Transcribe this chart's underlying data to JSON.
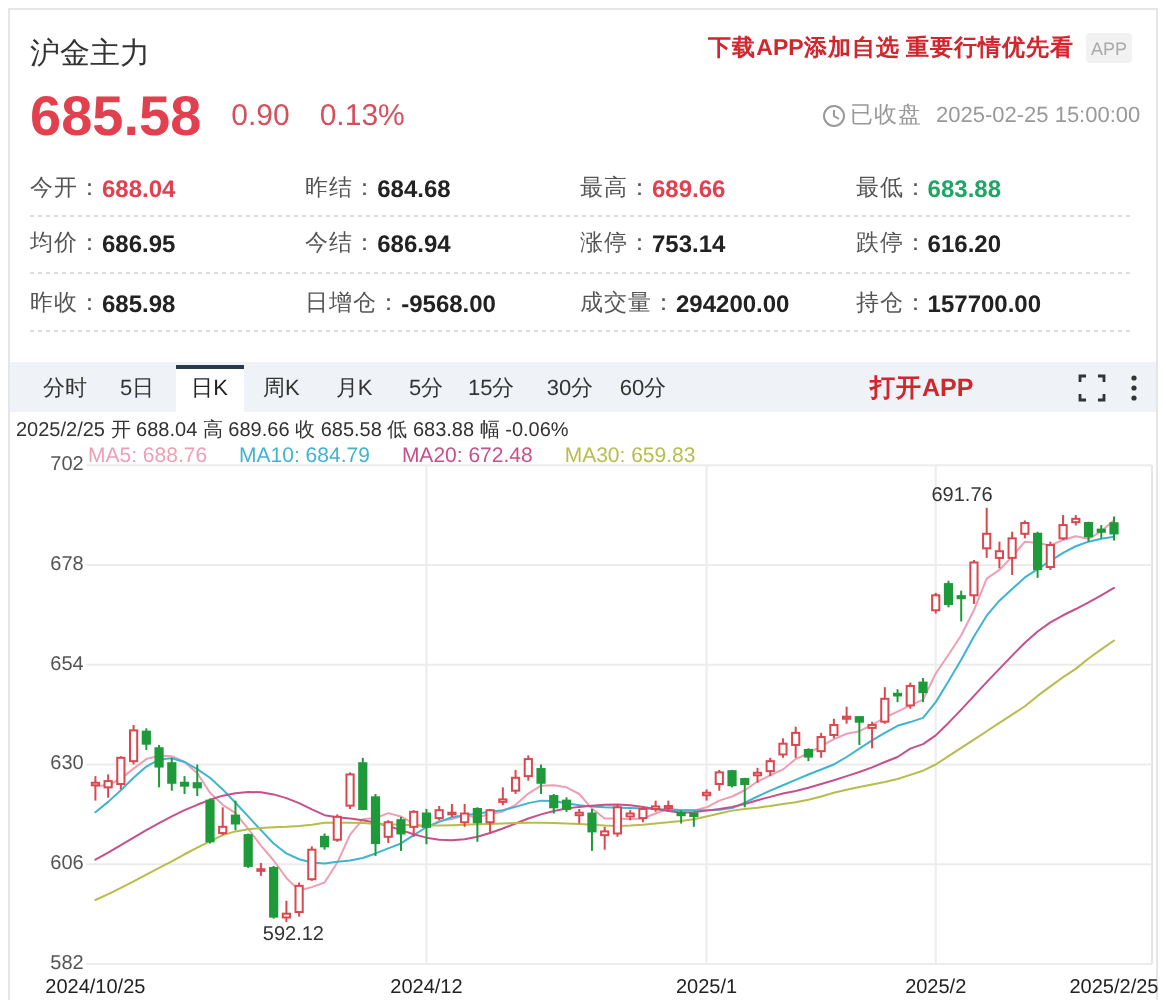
{
  "chart_data": {
    "type": "candlestick",
    "title": "沪金主力",
    "subtitle": "2025/2/25 开 688.04 高 689.66 收 685.58 低 683.88 幅 -0.06%",
    "categories": [
      "2024/10/25",
      null,
      null,
      null,
      null,
      null,
      null,
      null,
      null,
      null,
      null,
      null,
      null,
      null,
      null,
      null,
      null,
      null,
      null,
      null,
      null,
      null,
      null,
      null,
      null,
      null,
      "2024/12",
      null,
      null,
      null,
      null,
      null,
      null,
      null,
      null,
      null,
      null,
      null,
      null,
      null,
      null,
      null,
      null,
      null,
      null,
      null,
      null,
      null,
      "2025/1",
      null,
      null,
      null,
      null,
      null,
      null,
      null,
      null,
      null,
      null,
      null,
      null,
      null,
      null,
      null,
      null,
      null,
      "2025/2",
      null,
      null,
      null,
      null,
      null,
      null,
      null,
      null,
      null,
      null,
      null,
      null,
      null,
      "2025/2/25"
    ],
    "ohlc": [
      [
        625.0,
        627.2,
        621.3,
        625.6
      ],
      [
        624.5,
        627.6,
        622.0,
        626.0
      ],
      [
        625.3,
        632.0,
        624.0,
        631.6
      ],
      [
        630.8,
        639.5,
        630.0,
        638.2
      ],
      [
        637.9,
        638.7,
        633.5,
        635.0
      ],
      [
        633.9,
        634.7,
        624.5,
        629.5
      ],
      [
        630.3,
        631.6,
        623.7,
        625.6
      ],
      [
        625.6,
        627.2,
        622.9,
        624.9
      ],
      [
        625.5,
        630.0,
        622.4,
        624.5
      ],
      [
        621.3,
        621.8,
        611.0,
        611.5
      ],
      [
        613.5,
        619.7,
        613.0,
        615.0
      ],
      [
        617.7,
        621.3,
        614.2,
        615.8
      ],
      [
        613.0,
        613.4,
        605.1,
        605.6
      ],
      [
        604.5,
        606.3,
        603.2,
        604.8
      ],
      [
        605.1,
        605.6,
        592.9,
        593.4
      ],
      [
        593.2,
        597.2,
        592.12,
        594.1
      ],
      [
        594.5,
        601.6,
        593.4,
        600.8
      ],
      [
        602.4,
        610.3,
        602.0,
        609.5
      ],
      [
        612.6,
        613.4,
        609.5,
        610.3
      ],
      [
        611.9,
        618.0,
        611.4,
        617.4
      ],
      [
        620.1,
        628.1,
        619.3,
        627.6
      ],
      [
        630.3,
        631.6,
        619.0,
        619.3
      ],
      [
        622.1,
        622.9,
        608.0,
        611.1
      ],
      [
        612.6,
        616.6,
        611.1,
        616.1
      ],
      [
        616.6,
        617.4,
        609.2,
        613.4
      ],
      [
        615.0,
        619.0,
        612.6,
        618.6
      ],
      [
        618.2,
        619.3,
        610.8,
        615.0
      ],
      [
        617.1,
        620.0,
        616.6,
        619.0
      ],
      [
        618.0,
        620.5,
        617.4,
        618.4
      ],
      [
        616.1,
        620.5,
        615.0,
        618.2
      ],
      [
        619.3,
        619.7,
        611.4,
        616.1
      ],
      [
        616.1,
        619.3,
        613.4,
        619.0
      ],
      [
        621.0,
        624.5,
        620.2,
        621.6
      ],
      [
        623.7,
        628.7,
        622.9,
        626.8
      ],
      [
        627.2,
        632.2,
        626.1,
        631.3
      ],
      [
        628.9,
        630.0,
        622.9,
        625.6
      ],
      [
        622.4,
        622.9,
        618.2,
        619.7
      ],
      [
        621.3,
        622.1,
        618.6,
        619.3
      ],
      [
        617.8,
        619.3,
        615.8,
        618.4
      ],
      [
        618.2,
        619.3,
        609.2,
        613.9
      ],
      [
        613.0,
        615.0,
        609.5,
        613.9
      ],
      [
        613.4,
        620.5,
        612.6,
        619.7
      ],
      [
        617.5,
        619.0,
        616.6,
        618.2
      ],
      [
        617.1,
        619.7,
        616.1,
        619.3
      ],
      [
        619.3,
        621.3,
        618.6,
        619.9
      ],
      [
        619.5,
        621.3,
        618.6,
        620.0
      ],
      [
        618.4,
        618.9,
        615.8,
        617.8
      ],
      [
        618.2,
        618.2,
        615.0,
        617.6
      ],
      [
        622.6,
        624.0,
        621.3,
        623.2
      ],
      [
        625.3,
        628.7,
        623.7,
        628.1
      ],
      [
        628.4,
        628.7,
        624.5,
        625.0
      ],
      [
        626.5,
        626.8,
        619.7,
        625.3
      ],
      [
        627.4,
        629.2,
        625.6,
        628.0
      ],
      [
        628.4,
        631.6,
        627.2,
        630.8
      ],
      [
        632.4,
        636.3,
        631.6,
        635.0
      ],
      [
        634.7,
        639.1,
        631.6,
        637.6
      ],
      [
        633.5,
        633.9,
        630.8,
        631.9
      ],
      [
        633.2,
        637.6,
        631.6,
        636.6
      ],
      [
        637.1,
        641.0,
        636.3,
        639.5
      ],
      [
        641.0,
        643.9,
        639.8,
        641.5
      ],
      [
        641.4,
        641.4,
        634.7,
        640.3
      ],
      [
        638.8,
        640.3,
        633.9,
        639.5
      ],
      [
        640.3,
        648.6,
        639.8,
        645.8
      ],
      [
        647.0,
        648.1,
        645.0,
        646.6
      ],
      [
        644.2,
        649.7,
        643.4,
        648.9
      ],
      [
        649.7,
        650.8,
        645.0,
        647.4
      ],
      [
        667.1,
        671.3,
        666.3,
        670.7
      ],
      [
        673.4,
        674.2,
        667.8,
        668.6
      ],
      [
        670.5,
        671.8,
        664.4,
        670.0
      ],
      [
        670.7,
        679.2,
        668.6,
        678.6
      ],
      [
        682.0,
        691.76,
        679.7,
        685.5
      ],
      [
        679.7,
        683.6,
        677.2,
        681.3
      ],
      [
        679.7,
        686.0,
        675.6,
        684.4
      ],
      [
        685.5,
        688.7,
        684.4,
        688.1
      ],
      [
        685.5,
        686.0,
        674.9,
        677.0
      ],
      [
        677.5,
        683.6,
        676.8,
        682.8
      ],
      [
        684.4,
        690.0,
        684.0,
        687.6
      ],
      [
        688.3,
        690.0,
        687.5,
        689.1
      ],
      [
        688.1,
        688.4,
        683.6,
        684.9
      ],
      [
        686.5,
        687.6,
        684.4,
        685.98
      ],
      [
        688.04,
        689.66,
        683.88,
        685.58
      ]
    ],
    "series": [
      {
        "name": "MA5: 688.76",
        "type": "line",
        "color": "#ee9fb3",
        "values": [
          624.8,
          625.0,
          626.6,
          629.0,
          631.3,
          632.1,
          632.0,
          630.6,
          627.9,
          623.2,
          620.3,
          618.3,
          614.5,
          610.5,
          606.9,
          602.7,
          599.7,
          600.5,
          601.6,
          606.4,
          613.1,
          616.8,
          617.1,
          618.3,
          617.5,
          615.7,
          614.8,
          616.4,
          616.9,
          617.8,
          617.3,
          618.1,
          618.7,
          620.3,
          623.0,
          624.9,
          625.0,
          624.5,
          622.9,
          619.4,
          617.0,
          617.0,
          616.8,
          617.0,
          618.2,
          619.4,
          619.0,
          618.9,
          619.7,
          621.3,
          622.3,
          623.8,
          625.9,
          627.4,
          628.8,
          631.3,
          632.7,
          634.4,
          636.1,
          637.4,
          638.0,
          639.5,
          641.3,
          642.7,
          644.2,
          645.6,
          651.9,
          656.4,
          661.1,
          667.1,
          674.7,
          676.8,
          680.0,
          683.6,
          683.3,
          682.7,
          684.0,
          684.9,
          684.3,
          686.1,
          688.76
        ]
      },
      {
        "name": "MA10: 684.79",
        "type": "line",
        "color": "#3fb4cf",
        "values": [
          618.5,
          621.0,
          623.8,
          626.8,
          629.5,
          631.2,
          631.5,
          630.6,
          628.9,
          626.8,
          624.0,
          620.8,
          617.5,
          614.2,
          611.0,
          608.6,
          607.2,
          606.4,
          606.2,
          606.6,
          606.9,
          607.5,
          608.6,
          609.8,
          611.0,
          613.0,
          614.9,
          616.2,
          617.3,
          617.8,
          618.2,
          618.6,
          619.0,
          619.8,
          620.7,
          621.3,
          621.2,
          620.7,
          620.2,
          619.9,
          619.7,
          619.6,
          619.5,
          619.4,
          619.3,
          619.1,
          619.0,
          619.0,
          619.0,
          619.1,
          619.5,
          620.8,
          622.3,
          623.7,
          625.0,
          626.3,
          627.6,
          628.8,
          630.0,
          631.8,
          633.8,
          635.8,
          637.6,
          639.3,
          640.2,
          641.2,
          645.0,
          650.0,
          655.2,
          660.8,
          665.8,
          669.4,
          672.2,
          675.0,
          677.0,
          679.0,
          680.9,
          682.5,
          683.6,
          684.3,
          684.79
        ]
      },
      {
        "name": "MA20: 672.48",
        "type": "line",
        "color": "#c64f8c",
        "values": [
          607.1,
          608.8,
          610.6,
          612.4,
          614.2,
          615.9,
          617.5,
          619.0,
          620.3,
          621.5,
          622.5,
          623.1,
          623.4,
          623.3,
          622.8,
          621.9,
          620.7,
          619.2,
          617.8,
          617.3,
          617.0,
          616.6,
          616.0,
          615.2,
          614.2,
          613.2,
          612.4,
          611.9,
          611.8,
          612.0,
          612.6,
          613.5,
          614.6,
          615.8,
          617.0,
          618.0,
          618.8,
          619.4,
          619.8,
          620.1,
          620.3,
          620.4,
          620.2,
          619.8,
          619.3,
          618.8,
          618.4,
          618.5,
          618.9,
          619.3,
          619.8,
          620.5,
          621.4,
          622.2,
          623.0,
          623.6,
          624.4,
          625.3,
          626.2,
          627.2,
          628.2,
          629.3,
          630.6,
          631.8,
          633.8,
          634.9,
          637.0,
          640.0,
          643.2,
          646.5,
          649.8,
          653.0,
          656.2,
          659.3,
          662.0,
          664.2,
          665.9,
          667.4,
          669.0,
          670.7,
          672.48
        ]
      },
      {
        "name": "MA30: 659.83",
        "type": "line",
        "color": "#b7bd4c",
        "values": [
          597.4,
          598.8,
          600.3,
          601.9,
          603.5,
          605.1,
          606.7,
          608.4,
          610.0,
          611.5,
          613.0,
          613.9,
          614.4,
          614.7,
          614.9,
          615.0,
          615.2,
          615.5,
          616.0,
          616.0,
          616.0,
          615.9,
          615.7,
          615.6,
          615.5,
          615.4,
          615.3,
          615.3,
          615.4,
          615.5,
          615.6,
          615.7,
          615.8,
          615.9,
          616.0,
          616.0,
          615.9,
          615.8,
          615.7,
          615.5,
          615.3,
          615.2,
          615.3,
          615.5,
          615.8,
          616.1,
          616.4,
          616.8,
          617.5,
          618.2,
          618.9,
          619.3,
          619.6,
          620.0,
          620.5,
          620.9,
          621.5,
          622.3,
          623.2,
          623.9,
          624.6,
          625.2,
          625.8,
          626.5,
          627.5,
          628.5,
          630.0,
          632.0,
          634.0,
          636.0,
          638.0,
          640.0,
          642.0,
          644.0,
          646.5,
          648.8,
          651.0,
          653.0,
          655.5,
          657.7,
          659.83
        ]
      }
    ],
    "ylim": [
      582,
      702
    ],
    "yticks": [
      582,
      606,
      630,
      654,
      678,
      702
    ],
    "grid": true,
    "legend": "top left",
    "annotations": [
      "下载APP添加自选 重要行情优先看",
      "APP",
      "685.58",
      "0.90",
      "0.13%",
      "已收盘",
      "2025-02-25 15:00:00",
      "今开：",
      "688.04",
      "昨结：",
      "684.68",
      "最高：",
      "689.66",
      "最低：",
      "683.88",
      "均价：",
      "686.95",
      "今结：",
      "686.94",
      "涨停：",
      "753.14",
      "跌停：",
      "616.20",
      "昨收：",
      "685.98",
      "日增仓：",
      "-9568.00",
      "成交量：",
      "294200.00",
      "持仓：",
      "157700.00",
      "分时",
      "5日",
      "日K",
      "周K",
      "月K",
      "5分",
      "15分",
      "30分",
      "60分",
      "打开APP",
      "691.76",
      "592.12"
    ]
  }
}
